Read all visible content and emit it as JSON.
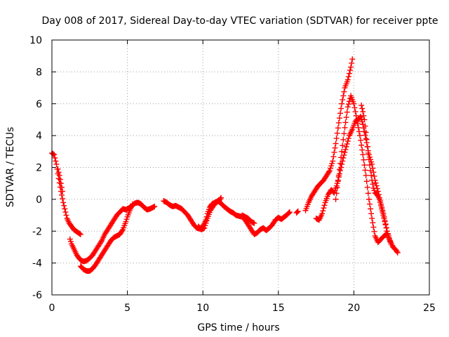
{
  "chart_data": {
    "type": "scatter",
    "title": "Day 008 of 2017, Sidereal Day-to-day VTEC variation (SDTVAR) for receiver ppte",
    "xlabel": "GPS time / hours",
    "ylabel": "SDTVAR / TECUs",
    "xlim": [
      0,
      25
    ],
    "ylim": [
      -6,
      10
    ],
    "xticks": [
      0,
      5,
      10,
      15,
      20,
      25
    ],
    "yticks": [
      -6,
      -4,
      -2,
      0,
      2,
      4,
      6,
      8,
      10
    ],
    "grid": true,
    "marker": "+",
    "series": [
      {
        "name": "SDTVAR",
        "color": "#ff0000",
        "segments": [
          [
            [
              0.0,
              2.9
            ],
            [
              0.15,
              2.8
            ],
            [
              0.3,
              2.2
            ],
            [
              0.45,
              1.3
            ],
            [
              0.6,
              0.5
            ],
            [
              0.75,
              -0.2
            ],
            [
              0.9,
              -0.8
            ],
            [
              1.0,
              -1.2
            ],
            [
              1.15,
              -1.5
            ],
            [
              1.3,
              -1.7
            ],
            [
              1.45,
              -1.9
            ],
            [
              1.6,
              -2.0
            ],
            [
              1.75,
              -2.1
            ],
            [
              1.9,
              -2.2
            ]
          ],
          [
            [
              0.4,
              1.9
            ],
            [
              0.5,
              1.5
            ],
            [
              0.6,
              1.0
            ],
            [
              0.7,
              0.5
            ]
          ],
          [
            [
              1.2,
              -2.5
            ],
            [
              1.3,
              -2.8
            ],
            [
              1.4,
              -3.0
            ],
            [
              1.5,
              -3.2
            ],
            [
              1.65,
              -3.5
            ],
            [
              1.8,
              -3.7
            ],
            [
              1.95,
              -3.85
            ],
            [
              2.1,
              -3.9
            ],
            [
              2.3,
              -3.85
            ],
            [
              2.5,
              -3.7
            ],
            [
              2.7,
              -3.5
            ],
            [
              2.9,
              -3.2
            ],
            [
              3.1,
              -2.9
            ],
            [
              3.3,
              -2.6
            ],
            [
              3.5,
              -2.2
            ],
            [
              3.7,
              -1.9
            ],
            [
              3.9,
              -1.6
            ],
            [
              4.1,
              -1.3
            ],
            [
              4.3,
              -1.0
            ],
            [
              4.5,
              -0.8
            ],
            [
              4.7,
              -0.6
            ],
            [
              4.9,
              -0.65
            ],
            [
              5.1,
              -0.55
            ],
            [
              5.3,
              -0.4
            ],
            [
              5.5,
              -0.25
            ],
            [
              5.7,
              -0.2
            ],
            [
              5.9,
              -0.3
            ],
            [
              6.1,
              -0.5
            ],
            [
              6.3,
              -0.65
            ],
            [
              6.5,
              -0.6
            ],
            [
              6.7,
              -0.5
            ],
            [
              6.8,
              -0.45
            ]
          ],
          [
            [
              1.9,
              -4.2
            ],
            [
              2.1,
              -4.4
            ],
            [
              2.3,
              -4.5
            ],
            [
              2.5,
              -4.5
            ],
            [
              2.7,
              -4.35
            ],
            [
              2.9,
              -4.1
            ],
            [
              3.1,
              -3.8
            ],
            [
              3.3,
              -3.5
            ],
            [
              3.5,
              -3.2
            ],
            [
              3.7,
              -2.9
            ],
            [
              3.9,
              -2.6
            ],
            [
              4.1,
              -2.4
            ],
            [
              4.3,
              -2.3
            ],
            [
              4.5,
              -2.2
            ],
            [
              4.7,
              -1.9
            ],
            [
              4.9,
              -1.4
            ],
            [
              5.0,
              -1.1
            ],
            [
              5.2,
              -0.6
            ],
            [
              5.35,
              -0.3
            ]
          ],
          [
            [
              7.4,
              -0.1
            ],
            [
              7.6,
              -0.2
            ],
            [
              7.8,
              -0.35
            ],
            [
              8.0,
              -0.45
            ],
            [
              8.2,
              -0.4
            ],
            [
              8.4,
              -0.5
            ],
            [
              8.6,
              -0.6
            ],
            [
              8.8,
              -0.8
            ],
            [
              9.0,
              -1.0
            ],
            [
              9.2,
              -1.3
            ],
            [
              9.4,
              -1.6
            ],
            [
              9.6,
              -1.8
            ],
            [
              9.8,
              -1.85
            ],
            [
              10.0,
              -1.7
            ],
            [
              10.1,
              -1.5
            ],
            [
              10.2,
              -1.3
            ],
            [
              10.3,
              -0.9
            ],
            [
              10.45,
              -0.5
            ],
            [
              10.6,
              -0.3
            ],
            [
              10.8,
              -0.2
            ],
            [
              11.0,
              -0.1
            ],
            [
              11.2,
              -0.25
            ],
            [
              11.4,
              -0.45
            ],
            [
              11.6,
              -0.6
            ],
            [
              11.8,
              -0.75
            ],
            [
              12.0,
              -0.85
            ],
            [
              12.2,
              -1.0
            ],
            [
              12.4,
              -1.05
            ],
            [
              12.6,
              -1.1
            ],
            [
              12.8,
              -1.3
            ],
            [
              13.0,
              -1.6
            ],
            [
              13.2,
              -1.9
            ],
            [
              13.4,
              -2.2
            ],
            [
              13.6,
              -2.1
            ],
            [
              13.8,
              -1.9
            ],
            [
              14.0,
              -1.8
            ],
            [
              14.2,
              -1.95
            ],
            [
              14.4,
              -1.8
            ],
            [
              14.6,
              -1.6
            ],
            [
              14.8,
              -1.3
            ],
            [
              15.0,
              -1.15
            ],
            [
              15.2,
              -1.25
            ],
            [
              15.4,
              -1.1
            ],
            [
              15.6,
              -0.95
            ],
            [
              15.75,
              -0.8
            ]
          ],
          [
            [
              9.7,
              -1.7
            ],
            [
              9.9,
              -1.9
            ],
            [
              10.1,
              -1.8
            ],
            [
              10.3,
              -1.2
            ],
            [
              10.5,
              -0.7
            ],
            [
              10.7,
              -0.4
            ],
            [
              10.9,
              -0.2
            ],
            [
              11.1,
              -0.05
            ],
            [
              11.2,
              0.1
            ]
          ],
          [
            [
              12.6,
              -1.0
            ],
            [
              12.8,
              -1.1
            ],
            [
              13.0,
              -1.2
            ],
            [
              13.2,
              -1.4
            ],
            [
              13.4,
              -1.5
            ]
          ],
          [
            [
              16.2,
              -0.85
            ],
            [
              16.3,
              -0.75
            ]
          ],
          [
            [
              16.8,
              -0.7
            ],
            [
              17.0,
              -0.2
            ],
            [
              17.2,
              0.2
            ],
            [
              17.4,
              0.5
            ],
            [
              17.6,
              0.8
            ],
            [
              17.8,
              1.0
            ],
            [
              18.0,
              1.2
            ],
            [
              18.2,
              1.5
            ],
            [
              18.4,
              1.8
            ],
            [
              18.6,
              2.4
            ],
            [
              18.8,
              3.5
            ],
            [
              19.0,
              4.8
            ],
            [
              19.2,
              6.0
            ],
            [
              19.4,
              7.0
            ],
            [
              19.6,
              7.5
            ],
            [
              19.8,
              8.3
            ],
            [
              19.9,
              8.8
            ]
          ],
          [
            [
              17.5,
              -1.2
            ],
            [
              17.7,
              -1.3
            ],
            [
              17.9,
              -0.9
            ],
            [
              18.1,
              -0.2
            ],
            [
              18.3,
              0.3
            ],
            [
              18.5,
              0.6
            ],
            [
              18.7,
              0.4
            ],
            [
              18.9,
              1.0
            ],
            [
              19.1,
              1.8
            ],
            [
              19.3,
              2.6
            ],
            [
              19.5,
              3.3
            ],
            [
              19.7,
              4.0
            ],
            [
              19.9,
              4.4
            ],
            [
              20.1,
              4.9
            ],
            [
              20.3,
              5.0
            ],
            [
              20.45,
              5.2
            ],
            [
              20.6,
              4.7
            ],
            [
              20.8,
              3.8
            ],
            [
              21.0,
              2.8
            ],
            [
              21.2,
              2.2
            ],
            [
              21.4,
              1.2
            ],
            [
              21.6,
              0.5
            ],
            [
              21.8,
              -0.3
            ],
            [
              22.0,
              -1.1
            ],
            [
              22.2,
              -2.0
            ],
            [
              22.4,
              -2.6
            ],
            [
              22.6,
              -3.0
            ],
            [
              22.8,
              -3.2
            ],
            [
              22.9,
              -3.35
            ]
          ],
          [
            [
              18.8,
              0.0
            ],
            [
              19.0,
              1.5
            ],
            [
              19.2,
              3.0
            ],
            [
              19.4,
              4.5
            ],
            [
              19.6,
              5.8
            ],
            [
              19.8,
              6.5
            ],
            [
              20.0,
              6.0
            ],
            [
              20.2,
              5.0
            ],
            [
              20.4,
              4.0
            ],
            [
              20.6,
              2.8
            ],
            [
              20.8,
              1.5
            ],
            [
              21.0,
              0.0
            ],
            [
              21.2,
              -1.2
            ],
            [
              21.4,
              -2.3
            ],
            [
              21.6,
              -2.7
            ],
            [
              21.8,
              -2.5
            ],
            [
              22.0,
              -2.3
            ],
            [
              22.15,
              -2.2
            ]
          ],
          [
            [
              20.5,
              5.9
            ],
            [
              20.6,
              5.5
            ],
            [
              20.7,
              5.0
            ],
            [
              20.8,
              4.2
            ],
            [
              20.9,
              3.3
            ],
            [
              21.0,
              2.5
            ],
            [
              21.1,
              1.8
            ],
            [
              21.2,
              1.2
            ],
            [
              21.3,
              0.7
            ],
            [
              21.4,
              0.4
            ],
            [
              21.55,
              0.3
            ],
            [
              21.7,
              0.0
            ],
            [
              21.85,
              -0.6
            ],
            [
              22.0,
              -1.2
            ],
            [
              22.15,
              -1.8
            ],
            [
              22.3,
              -2.4
            ],
            [
              22.45,
              -2.8
            ]
          ]
        ]
      }
    ]
  }
}
